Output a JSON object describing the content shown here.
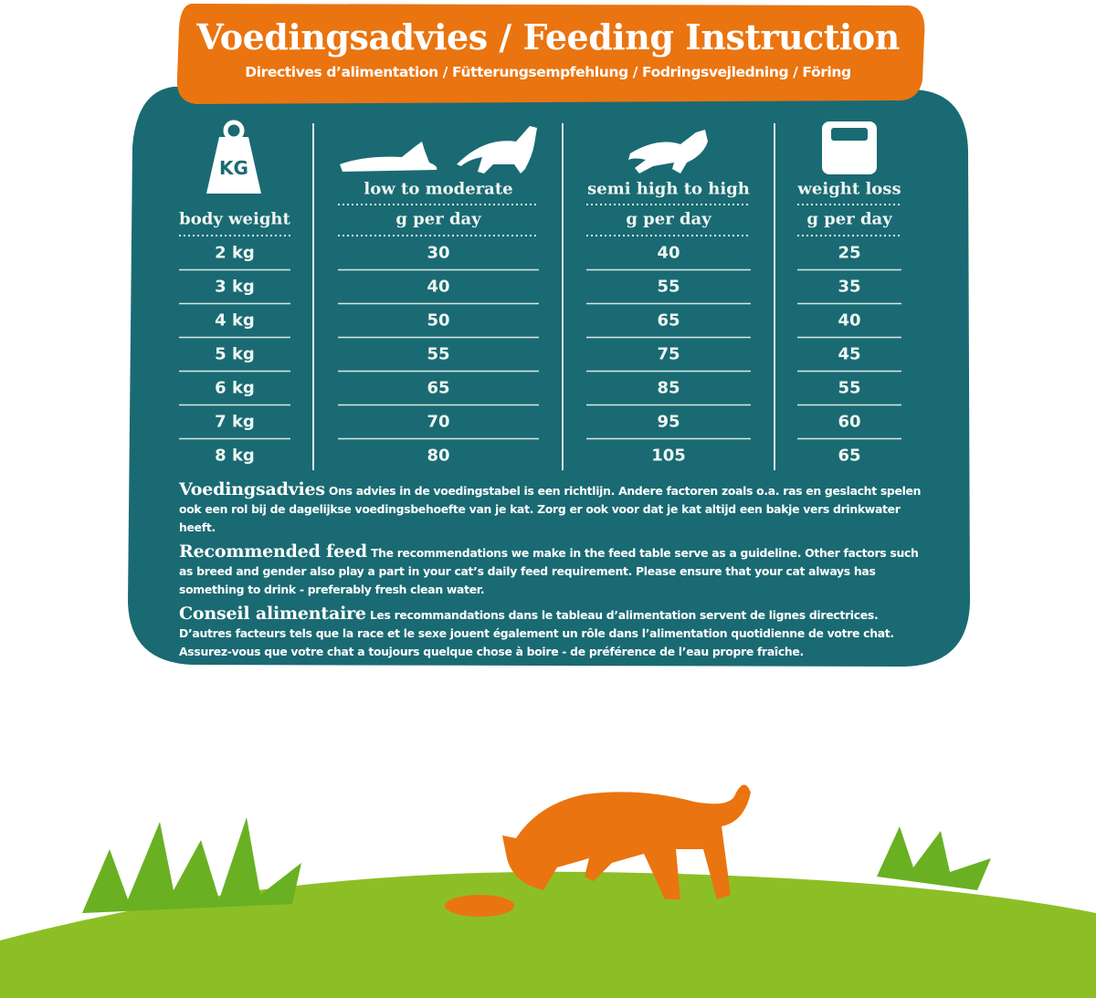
{
  "header": {
    "title": "Voedingsadvies / Feeding Instruction",
    "subtitle": "Directives d’alimentation / Fütterungsempfehlung / Fodringsvejledning / Föring"
  },
  "table": {
    "icon_label": "KG",
    "groups": [
      "low to moderate",
      "semi high to high",
      "weight loss"
    ],
    "columns": [
      "body weight",
      "g per day",
      "g per day",
      "g per day"
    ],
    "rows": [
      [
        "2 kg",
        30,
        40,
        25
      ],
      [
        "3 kg",
        40,
        55,
        35
      ],
      [
        "4 kg",
        50,
        65,
        40
      ],
      [
        "5 kg",
        55,
        75,
        45
      ],
      [
        "6 kg",
        65,
        85,
        55
      ],
      [
        "7 kg",
        70,
        95,
        60
      ],
      [
        "8 kg",
        80,
        105,
        65
      ]
    ]
  },
  "notes": [
    {
      "heading": "Voedingsadvies",
      "text": "Ons advies in de voedingstabel is een richtlijn. Andere factoren zoals o.a. ras en geslacht spelen ook een rol bij de dagelijkse voedingsbehoefte van je kat. Zorg er ook voor dat je kat altijd een bakje vers drinkwater heeft."
    },
    {
      "heading": "Recommended feed",
      "text": "The recommendations we make in the feed table serve as a guideline. Other factors such as breed and gender also play a part in your cat’s daily feed requirement. Please ensure that your cat always has something to drink - preferably fresh clean water."
    },
    {
      "heading": "Conseil alimentaire",
      "text": "Les recommandations dans le tableau d’alimentation servent de lignes directrices. D’autres facteurs tels que la race et le sexe jouent également un rôle dans l’alimentation quotidienne de votre chat. Assurez-vous que votre chat a toujours quelque chose à boire - de préférence de l’eau propre fraîche."
    }
  ]
}
